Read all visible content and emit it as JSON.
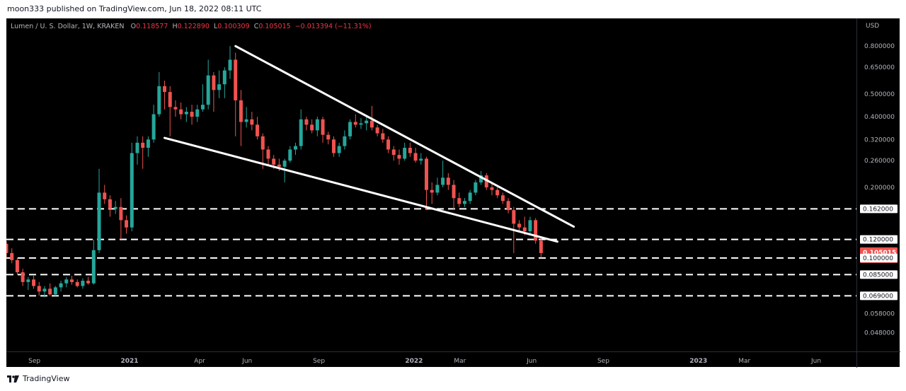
{
  "header": {
    "publish_line": "moon333 published on TradingView.com, Jun 18, 2022 08:11 UTC"
  },
  "legend": {
    "symbol": "Lumen / U. S. Dollar, 1W, KRAKEN",
    "o_label": "O",
    "o_value": "0.118577",
    "h_label": "H",
    "h_value": "0.122890",
    "l_label": "L",
    "l_value": "0.100309",
    "c_label": "C",
    "c_value": "0.105015",
    "change": "−0.013394 (−11.31%)"
  },
  "footer": {
    "brand": "TradingView"
  },
  "colors": {
    "up": "#26a69a",
    "down": "#ef5350",
    "background": "#000000",
    "line": "#ffffff",
    "axis_text": "#b2b5be"
  },
  "chart_data": {
    "type": "candlestick",
    "scale": "log",
    "currency_label": "USD",
    "y_ticks": [
      "0.800000",
      "0.650000",
      "0.500000",
      "0.400000",
      "0.320000",
      "0.260000",
      "0.200000",
      "0.100000",
      "0.085000",
      "0.058000",
      "0.048000"
    ],
    "x_ticks": [
      "Sep",
      "2021",
      "Apr",
      "Jun",
      "Sep",
      "2022",
      "Mar",
      "Jun",
      "Sep",
      "2023",
      "Mar",
      "Jun"
    ],
    "x_tick_bold": [
      "2021",
      "2022",
      "2023"
    ],
    "ylim": [
      0.04,
      1.05
    ],
    "candles": [
      {
        "d": "2020-07-27",
        "o": 0.115,
        "h": 0.118,
        "l": 0.1,
        "c": 0.105
      },
      {
        "d": "2020-08-03",
        "o": 0.105,
        "h": 0.11,
        "l": 0.095,
        "c": 0.098
      },
      {
        "d": "2020-08-10",
        "o": 0.098,
        "h": 0.1,
        "l": 0.085,
        "c": 0.087
      },
      {
        "d": "2020-08-17",
        "o": 0.087,
        "h": 0.09,
        "l": 0.076,
        "c": 0.079
      },
      {
        "d": "2020-08-24",
        "o": 0.079,
        "h": 0.083,
        "l": 0.073,
        "c": 0.081
      },
      {
        "d": "2020-08-31",
        "o": 0.081,
        "h": 0.084,
        "l": 0.074,
        "c": 0.076
      },
      {
        "d": "2020-09-07",
        "o": 0.076,
        "h": 0.079,
        "l": 0.069,
        "c": 0.072
      },
      {
        "d": "2020-09-14",
        "o": 0.072,
        "h": 0.076,
        "l": 0.068,
        "c": 0.074
      },
      {
        "d": "2020-09-21",
        "o": 0.074,
        "h": 0.078,
        "l": 0.069,
        "c": 0.07
      },
      {
        "d": "2020-09-28",
        "o": 0.07,
        "h": 0.076,
        "l": 0.069,
        "c": 0.075
      },
      {
        "d": "2020-10-05",
        "o": 0.075,
        "h": 0.08,
        "l": 0.072,
        "c": 0.078
      },
      {
        "d": "2020-10-12",
        "o": 0.078,
        "h": 0.083,
        "l": 0.075,
        "c": 0.081
      },
      {
        "d": "2020-10-19",
        "o": 0.081,
        "h": 0.084,
        "l": 0.077,
        "c": 0.079
      },
      {
        "d": "2020-10-26",
        "o": 0.079,
        "h": 0.081,
        "l": 0.075,
        "c": 0.076
      },
      {
        "d": "2020-11-02",
        "o": 0.076,
        "h": 0.082,
        "l": 0.074,
        "c": 0.08
      },
      {
        "d": "2020-11-09",
        "o": 0.08,
        "h": 0.083,
        "l": 0.077,
        "c": 0.078
      },
      {
        "d": "2020-11-16",
        "o": 0.078,
        "h": 0.12,
        "l": 0.077,
        "c": 0.108
      },
      {
        "d": "2020-11-23",
        "o": 0.108,
        "h": 0.24,
        "l": 0.105,
        "c": 0.19
      },
      {
        "d": "2020-11-30",
        "o": 0.19,
        "h": 0.205,
        "l": 0.17,
        "c": 0.178
      },
      {
        "d": "2020-12-07",
        "o": 0.178,
        "h": 0.185,
        "l": 0.15,
        "c": 0.162
      },
      {
        "d": "2020-12-14",
        "o": 0.162,
        "h": 0.175,
        "l": 0.154,
        "c": 0.165
      },
      {
        "d": "2020-12-21",
        "o": 0.165,
        "h": 0.18,
        "l": 0.12,
        "c": 0.145
      },
      {
        "d": "2020-12-28",
        "o": 0.145,
        "h": 0.152,
        "l": 0.127,
        "c": 0.135
      },
      {
        "d": "2021-01-04",
        "o": 0.135,
        "h": 0.31,
        "l": 0.13,
        "c": 0.28
      },
      {
        "d": "2021-01-11",
        "o": 0.28,
        "h": 0.33,
        "l": 0.25,
        "c": 0.31
      },
      {
        "d": "2021-01-18",
        "o": 0.31,
        "h": 0.33,
        "l": 0.24,
        "c": 0.295
      },
      {
        "d": "2021-01-25",
        "o": 0.295,
        "h": 0.33,
        "l": 0.27,
        "c": 0.32
      },
      {
        "d": "2021-02-01",
        "o": 0.32,
        "h": 0.45,
        "l": 0.31,
        "c": 0.41
      },
      {
        "d": "2021-02-08",
        "o": 0.41,
        "h": 0.62,
        "l": 0.4,
        "c": 0.54
      },
      {
        "d": "2021-02-15",
        "o": 0.54,
        "h": 0.57,
        "l": 0.43,
        "c": 0.51
      },
      {
        "d": "2021-02-22",
        "o": 0.51,
        "h": 0.54,
        "l": 0.33,
        "c": 0.44
      },
      {
        "d": "2021-03-01",
        "o": 0.44,
        "h": 0.47,
        "l": 0.4,
        "c": 0.43
      },
      {
        "d": "2021-03-08",
        "o": 0.43,
        "h": 0.46,
        "l": 0.39,
        "c": 0.41
      },
      {
        "d": "2021-03-15",
        "o": 0.41,
        "h": 0.44,
        "l": 0.38,
        "c": 0.42
      },
      {
        "d": "2021-03-22",
        "o": 0.42,
        "h": 0.45,
        "l": 0.37,
        "c": 0.4
      },
      {
        "d": "2021-03-29",
        "o": 0.4,
        "h": 0.45,
        "l": 0.38,
        "c": 0.43
      },
      {
        "d": "2021-04-05",
        "o": 0.43,
        "h": 0.55,
        "l": 0.42,
        "c": 0.45
      },
      {
        "d": "2021-04-12",
        "o": 0.45,
        "h": 0.7,
        "l": 0.43,
        "c": 0.6
      },
      {
        "d": "2021-04-19",
        "o": 0.6,
        "h": 0.62,
        "l": 0.42,
        "c": 0.52
      },
      {
        "d": "2021-04-26",
        "o": 0.52,
        "h": 0.63,
        "l": 0.48,
        "c": 0.55
      },
      {
        "d": "2021-05-03",
        "o": 0.55,
        "h": 0.65,
        "l": 0.48,
        "c": 0.63
      },
      {
        "d": "2021-05-10",
        "o": 0.63,
        "h": 0.8,
        "l": 0.58,
        "c": 0.7
      },
      {
        "d": "2021-05-17",
        "o": 0.7,
        "h": 0.75,
        "l": 0.33,
        "c": 0.47
      },
      {
        "d": "2021-05-24",
        "o": 0.47,
        "h": 0.52,
        "l": 0.3,
        "c": 0.38
      },
      {
        "d": "2021-05-31",
        "o": 0.38,
        "h": 0.44,
        "l": 0.36,
        "c": 0.39
      },
      {
        "d": "2021-06-07",
        "o": 0.39,
        "h": 0.42,
        "l": 0.35,
        "c": 0.37
      },
      {
        "d": "2021-06-14",
        "o": 0.37,
        "h": 0.4,
        "l": 0.32,
        "c": 0.33
      },
      {
        "d": "2021-06-21",
        "o": 0.33,
        "h": 0.34,
        "l": 0.24,
        "c": 0.29
      },
      {
        "d": "2021-06-28",
        "o": 0.29,
        "h": 0.3,
        "l": 0.25,
        "c": 0.265
      },
      {
        "d": "2021-07-05",
        "o": 0.265,
        "h": 0.275,
        "l": 0.24,
        "c": 0.25
      },
      {
        "d": "2021-07-12",
        "o": 0.25,
        "h": 0.265,
        "l": 0.235,
        "c": 0.245
      },
      {
        "d": "2021-07-19",
        "o": 0.245,
        "h": 0.265,
        "l": 0.21,
        "c": 0.26
      },
      {
        "d": "2021-07-26",
        "o": 0.26,
        "h": 0.3,
        "l": 0.255,
        "c": 0.29
      },
      {
        "d": "2021-08-02",
        "o": 0.29,
        "h": 0.31,
        "l": 0.275,
        "c": 0.3
      },
      {
        "d": "2021-08-09",
        "o": 0.3,
        "h": 0.43,
        "l": 0.29,
        "c": 0.39
      },
      {
        "d": "2021-08-16",
        "o": 0.39,
        "h": 0.4,
        "l": 0.35,
        "c": 0.37
      },
      {
        "d": "2021-08-23",
        "o": 0.37,
        "h": 0.39,
        "l": 0.34,
        "c": 0.35
      },
      {
        "d": "2021-08-30",
        "o": 0.35,
        "h": 0.4,
        "l": 0.33,
        "c": 0.39
      },
      {
        "d": "2021-09-06",
        "o": 0.39,
        "h": 0.4,
        "l": 0.31,
        "c": 0.335
      },
      {
        "d": "2021-09-13",
        "o": 0.335,
        "h": 0.345,
        "l": 0.305,
        "c": 0.32
      },
      {
        "d": "2021-09-20",
        "o": 0.32,
        "h": 0.33,
        "l": 0.27,
        "c": 0.28
      },
      {
        "d": "2021-09-27",
        "o": 0.28,
        "h": 0.31,
        "l": 0.27,
        "c": 0.3
      },
      {
        "d": "2021-10-04",
        "o": 0.3,
        "h": 0.35,
        "l": 0.29,
        "c": 0.33
      },
      {
        "d": "2021-10-11",
        "o": 0.33,
        "h": 0.39,
        "l": 0.32,
        "c": 0.38
      },
      {
        "d": "2021-10-18",
        "o": 0.38,
        "h": 0.41,
        "l": 0.36,
        "c": 0.37
      },
      {
        "d": "2021-10-25",
        "o": 0.37,
        "h": 0.395,
        "l": 0.355,
        "c": 0.375
      },
      {
        "d": "2021-11-01",
        "o": 0.375,
        "h": 0.4,
        "l": 0.35,
        "c": 0.385
      },
      {
        "d": "2021-11-08",
        "o": 0.385,
        "h": 0.445,
        "l": 0.35,
        "c": 0.36
      },
      {
        "d": "2021-11-15",
        "o": 0.36,
        "h": 0.37,
        "l": 0.33,
        "c": 0.34
      },
      {
        "d": "2021-11-22",
        "o": 0.34,
        "h": 0.355,
        "l": 0.31,
        "c": 0.32
      },
      {
        "d": "2021-11-29",
        "o": 0.32,
        "h": 0.33,
        "l": 0.28,
        "c": 0.29
      },
      {
        "d": "2021-12-06",
        "o": 0.29,
        "h": 0.3,
        "l": 0.26,
        "c": 0.275
      },
      {
        "d": "2021-12-13",
        "o": 0.275,
        "h": 0.29,
        "l": 0.25,
        "c": 0.265
      },
      {
        "d": "2021-12-20",
        "o": 0.265,
        "h": 0.31,
        "l": 0.26,
        "c": 0.295
      },
      {
        "d": "2021-12-27",
        "o": 0.295,
        "h": 0.31,
        "l": 0.27,
        "c": 0.28
      },
      {
        "d": "2022-01-03",
        "o": 0.28,
        "h": 0.295,
        "l": 0.255,
        "c": 0.26
      },
      {
        "d": "2022-01-10",
        "o": 0.26,
        "h": 0.28,
        "l": 0.25,
        "c": 0.265
      },
      {
        "d": "2022-01-17",
        "o": 0.265,
        "h": 0.27,
        "l": 0.16,
        "c": 0.195
      },
      {
        "d": "2022-01-24",
        "o": 0.195,
        "h": 0.21,
        "l": 0.17,
        "c": 0.19
      },
      {
        "d": "2022-01-31",
        "o": 0.19,
        "h": 0.22,
        "l": 0.185,
        "c": 0.205
      },
      {
        "d": "2022-02-07",
        "o": 0.205,
        "h": 0.26,
        "l": 0.2,
        "c": 0.22
      },
      {
        "d": "2022-02-14",
        "o": 0.22,
        "h": 0.23,
        "l": 0.195,
        "c": 0.205
      },
      {
        "d": "2022-02-21",
        "o": 0.205,
        "h": 0.215,
        "l": 0.16,
        "c": 0.18
      },
      {
        "d": "2022-02-28",
        "o": 0.18,
        "h": 0.19,
        "l": 0.165,
        "c": 0.17
      },
      {
        "d": "2022-03-07",
        "o": 0.17,
        "h": 0.18,
        "l": 0.165,
        "c": 0.175
      },
      {
        "d": "2022-03-14",
        "o": 0.175,
        "h": 0.195,
        "l": 0.17,
        "c": 0.19
      },
      {
        "d": "2022-03-21",
        "o": 0.19,
        "h": 0.215,
        "l": 0.185,
        "c": 0.21
      },
      {
        "d": "2022-03-28",
        "o": 0.21,
        "h": 0.235,
        "l": 0.205,
        "c": 0.225
      },
      {
        "d": "2022-04-04",
        "o": 0.225,
        "h": 0.23,
        "l": 0.195,
        "c": 0.2
      },
      {
        "d": "2022-04-11",
        "o": 0.2,
        "h": 0.21,
        "l": 0.185,
        "c": 0.195
      },
      {
        "d": "2022-04-18",
        "o": 0.195,
        "h": 0.2,
        "l": 0.18,
        "c": 0.185
      },
      {
        "d": "2022-04-25",
        "o": 0.185,
        "h": 0.19,
        "l": 0.17,
        "c": 0.175
      },
      {
        "d": "2022-05-02",
        "o": 0.175,
        "h": 0.18,
        "l": 0.155,
        "c": 0.16
      },
      {
        "d": "2022-05-09",
        "o": 0.16,
        "h": 0.165,
        "l": 0.105,
        "c": 0.14
      },
      {
        "d": "2022-05-16",
        "o": 0.14,
        "h": 0.145,
        "l": 0.13,
        "c": 0.135
      },
      {
        "d": "2022-05-23",
        "o": 0.135,
        "h": 0.15,
        "l": 0.125,
        "c": 0.13
      },
      {
        "d": "2022-05-30",
        "o": 0.13,
        "h": 0.15,
        "l": 0.125,
        "c": 0.145
      },
      {
        "d": "2022-06-06",
        "o": 0.145,
        "h": 0.148,
        "l": 0.115,
        "c": 0.1186
      },
      {
        "d": "2022-06-13",
        "o": 0.1186,
        "h": 0.1229,
        "l": 0.1003,
        "c": 0.105
      }
    ],
    "horizontal_lines": [
      0.162,
      0.12,
      0.1,
      0.085,
      0.069
    ],
    "trendlines": [
      {
        "from": {
          "d": "2021-05-17",
          "y": 0.8
        },
        "to": {
          "d": "2022-07-25",
          "y": 0.136
        }
      },
      {
        "from": {
          "d": "2021-02-15",
          "y": 0.325
        },
        "to": {
          "d": "2022-07-04",
          "y": 0.1175
        }
      }
    ],
    "price_labels": [
      {
        "text": "0.162000",
        "y": 0.162,
        "style": "line"
      },
      {
        "text": "0.120000",
        "y": 0.12,
        "style": "line"
      },
      {
        "text": "0.105015",
        "sub": "1d 16h",
        "y": 0.105015,
        "style": "last"
      },
      {
        "text": "0.100000",
        "y": 0.1,
        "style": "line"
      },
      {
        "text": "0.085000",
        "y": 0.085,
        "style": "line"
      },
      {
        "text": "0.069000",
        "y": 0.069,
        "style": "line"
      }
    ]
  }
}
